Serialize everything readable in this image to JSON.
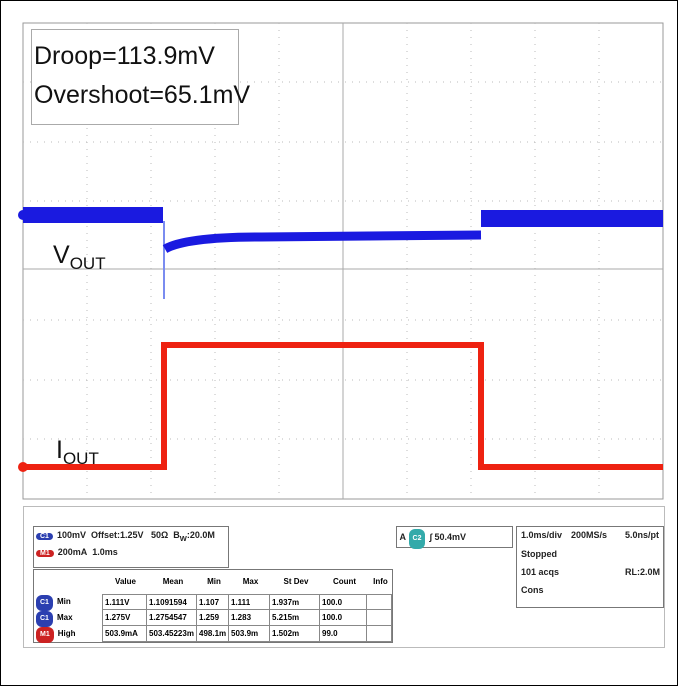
{
  "annotations": {
    "droop": "Droop=113.9mV",
    "overshoot": "Overshoot=65.1mV"
  },
  "trace_labels": {
    "vout": {
      "main": "V",
      "sub": "OUT"
    },
    "iout": {
      "main": "I",
      "sub": "OUT"
    }
  },
  "channels": [
    {
      "badge": "C1",
      "scale": "100mV",
      "offset": "Offset:1.25V",
      "impedance": "50Ω",
      "bw_main": "B",
      "bw_sub": "W",
      "bw_rest": ":20.0M"
    },
    {
      "badge": "M1",
      "scale": "200mA",
      "time": "1.0ms"
    }
  ],
  "trigger": {
    "source": "A",
    "channel": "C2",
    "level": "50.4mV"
  },
  "timebase": {
    "div": "1.0ms/div",
    "rate": "200MS/s",
    "pt": "5.0ns/pt",
    "state": "Stopped",
    "acqs": "101 acqs",
    "rl": "RL:2.0M",
    "mode": "Cons"
  },
  "table": {
    "headers": [
      "Value",
      "Mean",
      "Min",
      "Max",
      "St Dev",
      "Count",
      "Info"
    ],
    "rows": [
      {
        "badge": "C1",
        "label": "Min",
        "cells": [
          "1.111V",
          "1.1091594",
          "1.107",
          "1.111",
          "1.937m",
          "100.0"
        ]
      },
      {
        "badge": "C1",
        "label": "Max",
        "cells": [
          "1.275V",
          "1.2754547",
          "1.259",
          "1.283",
          "5.215m",
          "100.0"
        ]
      },
      {
        "badge": "M1",
        "label": "High",
        "cells": [
          "503.9mA",
          "503.45223m",
          "498.1m",
          "503.9m",
          "1.502m",
          "99.0"
        ]
      }
    ]
  }
}
